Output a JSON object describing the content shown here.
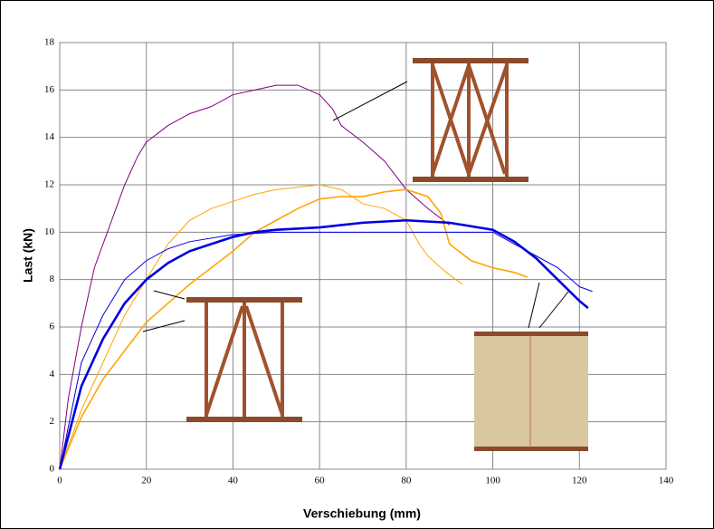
{
  "chart_data": {
    "type": "line",
    "x_label": "Verschiebung (mm)",
    "y_label": "Last (kN)",
    "xlim": [
      0,
      140
    ],
    "ylim": [
      0,
      18
    ],
    "xticks": [
      0,
      20,
      40,
      60,
      80,
      100,
      120,
      140
    ],
    "yticks": [
      0,
      2,
      4,
      6,
      8,
      10,
      12,
      14,
      16,
      18
    ],
    "grid": true,
    "series": [
      {
        "color": "#800080",
        "width": 1,
        "x": [
          0,
          2,
          5,
          8,
          10,
          12,
          15,
          18,
          20,
          25,
          30,
          35,
          40,
          45,
          50,
          55,
          60,
          63,
          65,
          70,
          75,
          80,
          85,
          90
        ],
        "values": [
          0,
          3,
          6,
          8.5,
          9.5,
          10.5,
          12,
          13.2,
          13.8,
          14.5,
          15,
          15.3,
          15.8,
          16,
          16.2,
          16.2,
          15.8,
          15.2,
          14.5,
          13.8,
          13,
          11.8,
          11,
          10.3
        ]
      },
      {
        "color": "#ffa500",
        "width": 1.6,
        "x": [
          0,
          5,
          10,
          15,
          20,
          25,
          30,
          35,
          40,
          45,
          50,
          55,
          60,
          65,
          70,
          75,
          80,
          85,
          88,
          90,
          95,
          100,
          105,
          108
        ],
        "values": [
          0,
          2.2,
          3.8,
          5,
          6.2,
          7,
          7.8,
          8.5,
          9.2,
          10,
          10.5,
          11,
          11.4,
          11.5,
          11.5,
          11.7,
          11.8,
          11.5,
          10.8,
          9.5,
          8.8,
          8.5,
          8.3,
          8.1
        ]
      },
      {
        "color": "#ffa500",
        "width": 1,
        "x": [
          0,
          5,
          10,
          15,
          20,
          25,
          30,
          35,
          40,
          45,
          50,
          55,
          60,
          65,
          70,
          75,
          80,
          83,
          85,
          88,
          90,
          93
        ],
        "values": [
          0,
          2.5,
          4.5,
          6.5,
          8,
          9.5,
          10.5,
          11,
          11.3,
          11.6,
          11.8,
          11.9,
          12,
          11.8,
          11.2,
          11,
          10.5,
          9.5,
          9,
          8.5,
          8.2,
          7.8
        ]
      },
      {
        "color": "#0000dd",
        "width": 2.6,
        "x": [
          0,
          5,
          10,
          15,
          20,
          25,
          30,
          35,
          40,
          45,
          50,
          60,
          70,
          80,
          90,
          100,
          105,
          110,
          115,
          120,
          122
        ],
        "values": [
          0,
          3.5,
          5.5,
          7,
          8,
          8.7,
          9.2,
          9.5,
          9.8,
          10,
          10.1,
          10.2,
          10.4,
          10.5,
          10.4,
          10.1,
          9.6,
          8.9,
          8,
          7.1,
          6.8
        ]
      },
      {
        "color": "#0000dd",
        "width": 1,
        "x": [
          0,
          5,
          10,
          15,
          20,
          25,
          30,
          40,
          50,
          60,
          70,
          80,
          90,
          100,
          105,
          110,
          115,
          120,
          123
        ],
        "values": [
          0,
          4.5,
          6.5,
          8,
          8.8,
          9.3,
          9.6,
          9.9,
          10,
          10,
          10,
          10,
          10,
          10,
          9.5,
          9,
          8.5,
          7.7,
          7.5
        ]
      }
    ]
  }
}
